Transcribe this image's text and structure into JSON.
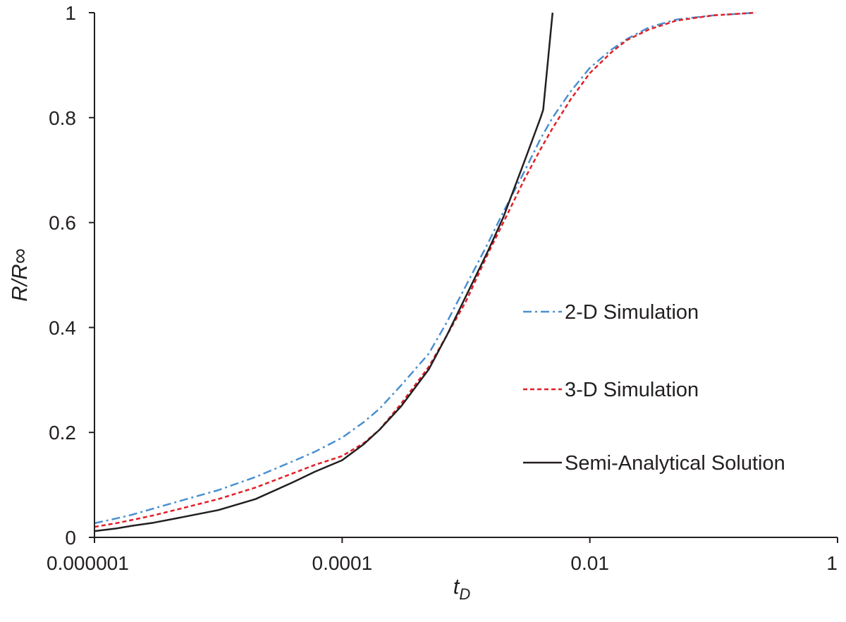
{
  "chart_data": {
    "type": "line",
    "title": "",
    "xlabel": {
      "main": "t",
      "sub": "D"
    },
    "ylabel": "R/R∞",
    "x_scale": "log",
    "xlim": [
      1e-06,
      1
    ],
    "ylim": [
      0,
      1
    ],
    "x_ticks": [
      {
        "value": 1e-06,
        "label": "0.000001"
      },
      {
        "value": 0.0001,
        "label": "0.0001"
      },
      {
        "value": 0.01,
        "label": "0.01"
      },
      {
        "value": 1,
        "label": "1"
      }
    ],
    "y_ticks": [
      {
        "value": 0,
        "label": "0"
      },
      {
        "value": 0.2,
        "label": "0.2"
      },
      {
        "value": 0.4,
        "label": "0.4"
      },
      {
        "value": 0.6,
        "label": "0.6"
      },
      {
        "value": 0.8,
        "label": "0.8"
      },
      {
        "value": 1,
        "label": "1"
      }
    ],
    "grid": false,
    "legend_position": "right",
    "series": [
      {
        "name": "2-D Simulation",
        "color": "#4a90d0",
        "line_style": "dash-dot",
        "points": [
          [
            1e-06,
            0.027
          ],
          [
            1.5e-06,
            0.036
          ],
          [
            2e-06,
            0.043
          ],
          [
            3e-06,
            0.055
          ],
          [
            5e-06,
            0.07
          ],
          [
            1e-05,
            0.09
          ],
          [
            2e-05,
            0.115
          ],
          [
            4e-05,
            0.145
          ],
          [
            6e-05,
            0.163
          ],
          [
            0.0001,
            0.19
          ],
          [
            0.00015,
            0.22
          ],
          [
            0.0002,
            0.245
          ],
          [
            0.0003,
            0.29
          ],
          [
            0.0005,
            0.35
          ],
          [
            0.0007,
            0.41
          ],
          [
            0.001,
            0.48
          ],
          [
            0.0015,
            0.56
          ],
          [
            0.002,
            0.62
          ],
          [
            0.003,
            0.7
          ],
          [
            0.004,
            0.76
          ],
          [
            0.005,
            0.8
          ],
          [
            0.007,
            0.85
          ],
          [
            0.01,
            0.895
          ],
          [
            0.015,
            0.93
          ],
          [
            0.02,
            0.95
          ],
          [
            0.03,
            0.972
          ],
          [
            0.05,
            0.987
          ],
          [
            0.1,
            0.995
          ],
          [
            0.22,
            1.0
          ]
        ]
      },
      {
        "name": "3-D Simulation",
        "color": "#e21e26",
        "line_style": "dashed",
        "points": [
          [
            1e-06,
            0.02
          ],
          [
            1.5e-06,
            0.027
          ],
          [
            2e-06,
            0.033
          ],
          [
            3e-06,
            0.042
          ],
          [
            5e-06,
            0.055
          ],
          [
            1e-05,
            0.073
          ],
          [
            2e-05,
            0.095
          ],
          [
            4e-05,
            0.122
          ],
          [
            6e-05,
            0.138
          ],
          [
            0.0001,
            0.155
          ],
          [
            0.00015,
            0.18
          ],
          [
            0.0002,
            0.205
          ],
          [
            0.0003,
            0.255
          ],
          [
            0.0005,
            0.325
          ],
          [
            0.0007,
            0.385
          ],
          [
            0.001,
            0.45
          ],
          [
            0.0015,
            0.54
          ],
          [
            0.002,
            0.6
          ],
          [
            0.003,
            0.685
          ],
          [
            0.004,
            0.74
          ],
          [
            0.005,
            0.78
          ],
          [
            0.007,
            0.835
          ],
          [
            0.01,
            0.885
          ],
          [
            0.015,
            0.925
          ],
          [
            0.02,
            0.948
          ],
          [
            0.03,
            0.968
          ],
          [
            0.05,
            0.985
          ],
          [
            0.1,
            0.995
          ],
          [
            0.22,
            1.0
          ]
        ]
      },
      {
        "name": "Semi-Analytical Solution",
        "color": "#231f20",
        "line_style": "solid",
        "points": [
          [
            1e-06,
            0.012
          ],
          [
            1.5e-06,
            0.017
          ],
          [
            2e-06,
            0.022
          ],
          [
            3e-06,
            0.028
          ],
          [
            5e-06,
            0.038
          ],
          [
            1e-05,
            0.052
          ],
          [
            2e-05,
            0.073
          ],
          [
            4e-05,
            0.105
          ],
          [
            6e-05,
            0.125
          ],
          [
            0.0001,
            0.147
          ],
          [
            0.00015,
            0.178
          ],
          [
            0.0002,
            0.205
          ],
          [
            0.0003,
            0.25
          ],
          [
            0.0005,
            0.32
          ],
          [
            0.0007,
            0.385
          ],
          [
            0.001,
            0.46
          ],
          [
            0.0015,
            0.545
          ],
          [
            0.002,
            0.61
          ],
          [
            0.003,
            0.72
          ],
          [
            0.004,
            0.8
          ],
          [
            0.0042,
            0.815
          ],
          [
            0.005,
            1.0
          ]
        ]
      }
    ]
  }
}
